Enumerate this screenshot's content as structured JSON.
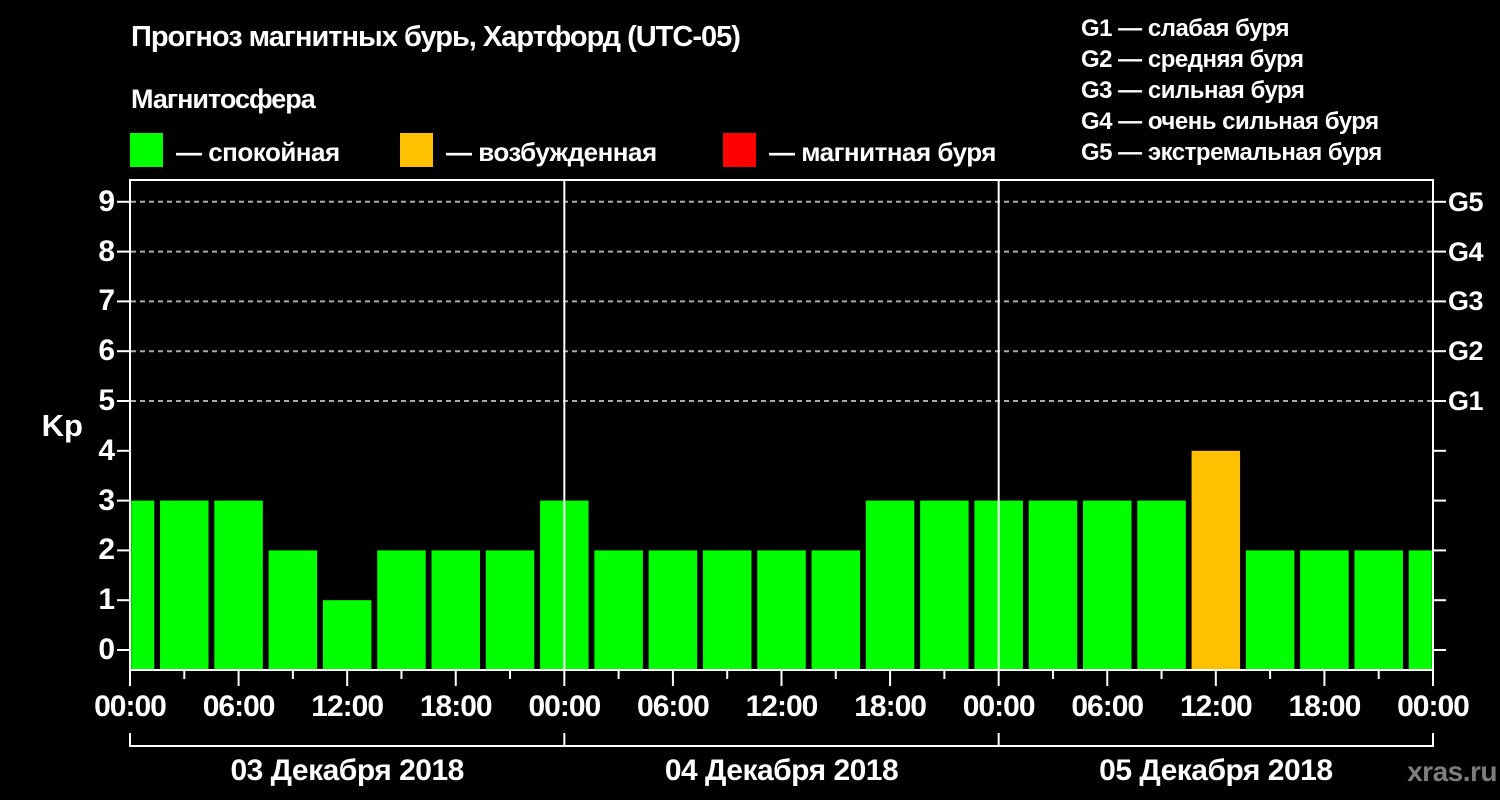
{
  "header": {
    "title": "Прогноз магнитных бурь, Хартфорд (UTC-05)",
    "subtitle": "Магнитосфера"
  },
  "legend": {
    "items": [
      {
        "state": "quiet",
        "label": "— спокойная"
      },
      {
        "state": "excited",
        "label": "— возбужденная"
      },
      {
        "state": "storm",
        "label": "— магнитная буря"
      }
    ]
  },
  "storm_scale_legend": {
    "separator": " — ",
    "items": [
      {
        "code": "G1",
        "kp": 5,
        "label": "слабая буря"
      },
      {
        "code": "G2",
        "kp": 6,
        "label": "средняя буря"
      },
      {
        "code": "G3",
        "kp": 7,
        "label": "сильная буря"
      },
      {
        "code": "G4",
        "kp": 8,
        "label": "очень сильная буря"
      },
      {
        "code": "G5",
        "kp": 9,
        "label": "экстремальная буря"
      }
    ]
  },
  "chart_data": {
    "type": "bar",
    "title": "Прогноз магнитных бурь, Хартфорд (UTC-05)",
    "ylabel": "Kp",
    "ylim": [
      0,
      9
    ],
    "y_ticks": [
      0,
      1,
      2,
      3,
      4,
      5,
      6,
      7,
      8,
      9
    ],
    "grid": "dashed horizontal lines at Kp 5-9 (G1-G5), right axis labelled G1-G5",
    "hours_step": 3,
    "x_time_labels": [
      "00:00",
      "06:00",
      "12:00",
      "18:00",
      "00:00",
      "06:00",
      "12:00",
      "18:00",
      "00:00",
      "06:00",
      "12:00",
      "18:00",
      "00:00"
    ],
    "days": [
      {
        "date": "03 Декабря 2018",
        "kp": [
          3,
          3,
          3,
          2,
          1,
          2,
          2,
          2
        ]
      },
      {
        "date": "04 Декабря 2018",
        "kp": [
          3,
          2,
          2,
          2,
          2,
          2,
          3,
          3
        ]
      },
      {
        "date": "05 Декабря 2018",
        "kp": [
          3,
          3,
          3,
          3,
          4,
          2,
          2,
          2
        ]
      }
    ],
    "next_day_first_kp": 2,
    "colors": {
      "quiet": "#00ff00",
      "excited": "#ffc000",
      "storm": "#ff0000"
    },
    "color_thresholds": {
      "excited_min_kp": 4,
      "storm_min_kp": 6
    },
    "axis_color": "#ffffff",
    "gridline_color": "#aaaaaa"
  },
  "watermark": "xras.ru"
}
